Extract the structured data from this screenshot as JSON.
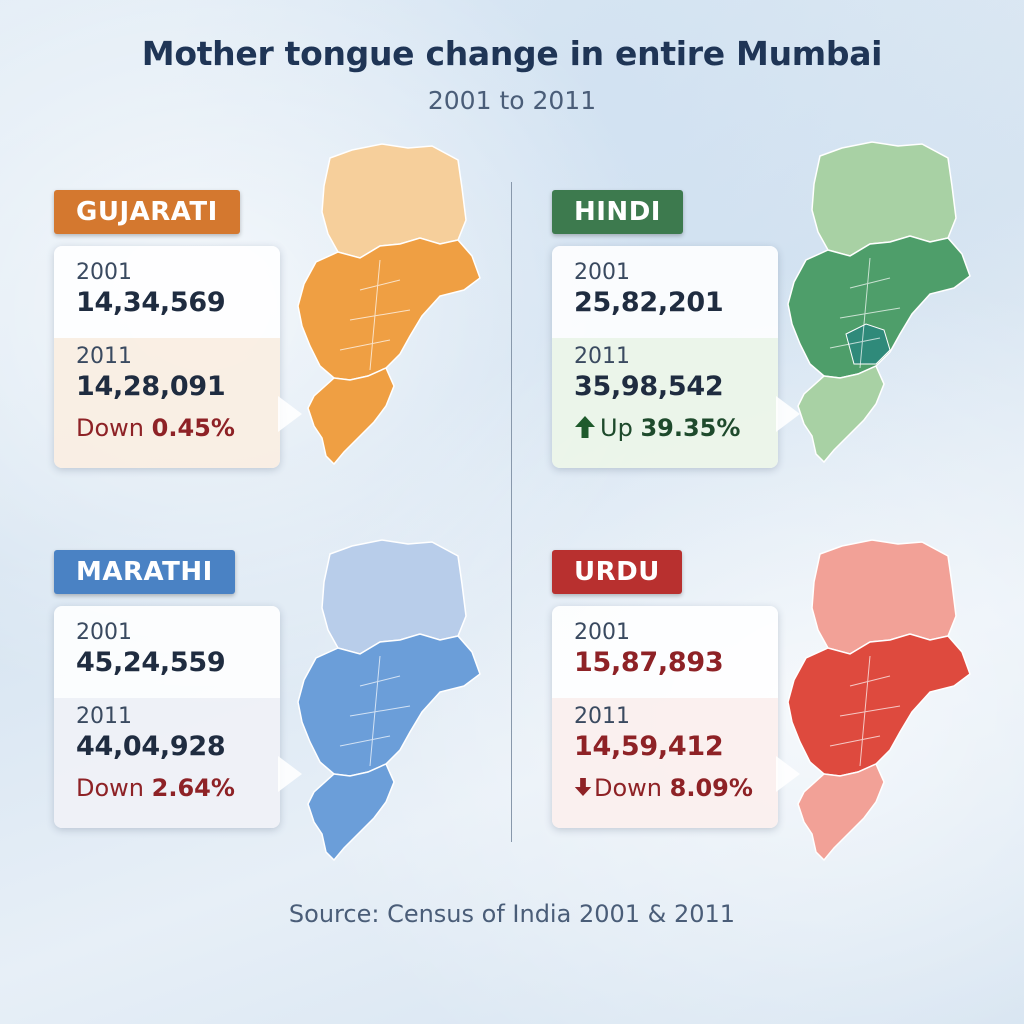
{
  "header": {
    "title": "Mother tongue change in entire Mumbai",
    "subtitle": "2001 to 2011"
  },
  "panels": [
    {
      "language": "GUJARATI",
      "accent": "#d4782f",
      "map_light": "#f6cf9b",
      "map_dark": "#ef9f43",
      "year1": "2001",
      "value1": "14,34,569",
      "year2": "2011",
      "value2": "14,28,091",
      "change_word": "Down",
      "change_pct": "0.45%",
      "direction": "down",
      "arrow_shown": false
    },
    {
      "language": "HINDI",
      "accent": "#3d7a4e",
      "map_light": "#a8d1a4",
      "map_dark": "#4e9e6a",
      "year1": "2001",
      "value1": "25,82,201",
      "year2": "2011",
      "value2": "35,98,542",
      "change_word": "Up",
      "change_pct": "39.35%",
      "direction": "up",
      "arrow_shown": true
    },
    {
      "language": "MARATHI",
      "accent": "#4a82c4",
      "map_light": "#b8cdea",
      "map_dark": "#6b9ed9",
      "year1": "2001",
      "value1": "45,24,559",
      "year2": "2011",
      "value2": "44,04,928",
      "change_word": "Down",
      "change_pct": "2.64%",
      "direction": "down",
      "arrow_shown": false
    },
    {
      "language": "URDU",
      "accent": "#b8302f",
      "map_light": "#f2a197",
      "map_dark": "#de4a3e",
      "year1": "2001",
      "value1": "15,87,893",
      "year2": "2011",
      "value2": "14,59,412",
      "change_word": "Down",
      "change_pct": "8.09%",
      "direction": "down",
      "arrow_shown": true
    }
  ],
  "footer": {
    "source": "Source: Census of India 2001 & 2011"
  }
}
